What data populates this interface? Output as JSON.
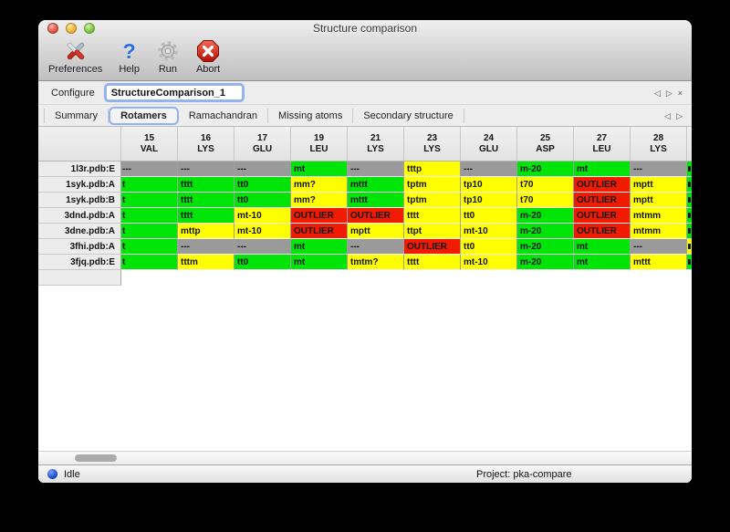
{
  "window": {
    "title": "Structure comparison"
  },
  "toolbar": {
    "buttons": [
      {
        "label": "Preferences",
        "icon": "tools-icon"
      },
      {
        "label": "Help",
        "icon": "help-icon",
        "glyph": "?"
      },
      {
        "label": "Run",
        "icon": "gear-icon"
      },
      {
        "label": "Abort",
        "icon": "abort-icon"
      }
    ]
  },
  "configure": {
    "label": "Configure",
    "field_value": "StructureComparison_1",
    "nav_back": "◁",
    "nav_forward": "▷",
    "nav_close": "×"
  },
  "tabs": {
    "items": [
      "Summary",
      "Rotamers",
      "Ramachandran",
      "Missing atoms",
      "Secondary structure"
    ],
    "selected": "Rotamers",
    "nav_back": "◁",
    "nav_forward": "▷"
  },
  "table": {
    "columns": [
      {
        "num": "15",
        "res": "VAL"
      },
      {
        "num": "16",
        "res": "LYS"
      },
      {
        "num": "17",
        "res": "GLU"
      },
      {
        "num": "19",
        "res": "LEU"
      },
      {
        "num": "21",
        "res": "LYS"
      },
      {
        "num": "23",
        "res": "LYS"
      },
      {
        "num": "24",
        "res": "GLU"
      },
      {
        "num": "25",
        "res": "ASP"
      },
      {
        "num": "27",
        "res": "LEU"
      },
      {
        "num": "28",
        "res": "LYS"
      }
    ],
    "rows": [
      {
        "label": "1l3r.pdb:E",
        "edge": "green",
        "cells": [
          {
            "t": "---",
            "c": "gray"
          },
          {
            "t": "---",
            "c": "gray"
          },
          {
            "t": "---",
            "c": "gray"
          },
          {
            "t": "mt",
            "c": "green"
          },
          {
            "t": "---",
            "c": "gray"
          },
          {
            "t": "tttp",
            "c": "yellow"
          },
          {
            "t": "---",
            "c": "gray"
          },
          {
            "t": "m-20",
            "c": "green"
          },
          {
            "t": "mt",
            "c": "green"
          },
          {
            "t": "---",
            "c": "gray"
          }
        ]
      },
      {
        "label": "1syk.pdb:A",
        "edge": "green",
        "cells": [
          {
            "t": "t",
            "c": "green"
          },
          {
            "t": "tttt",
            "c": "green"
          },
          {
            "t": "tt0",
            "c": "green"
          },
          {
            "t": "mm?",
            "c": "yellow"
          },
          {
            "t": "mttt",
            "c": "green"
          },
          {
            "t": "tptm",
            "c": "yellow"
          },
          {
            "t": "tp10",
            "c": "yellow"
          },
          {
            "t": "t70",
            "c": "yellow"
          },
          {
            "t": "OUTLIER",
            "c": "red"
          },
          {
            "t": "mptt",
            "c": "yellow"
          }
        ]
      },
      {
        "label": "1syk.pdb:B",
        "edge": "green",
        "cells": [
          {
            "t": "t",
            "c": "green"
          },
          {
            "t": "tttt",
            "c": "green"
          },
          {
            "t": "tt0",
            "c": "green"
          },
          {
            "t": "mm?",
            "c": "yellow"
          },
          {
            "t": "mttt",
            "c": "green"
          },
          {
            "t": "tptm",
            "c": "yellow"
          },
          {
            "t": "tp10",
            "c": "yellow"
          },
          {
            "t": "t70",
            "c": "yellow"
          },
          {
            "t": "OUTLIER",
            "c": "red"
          },
          {
            "t": "mptt",
            "c": "yellow"
          }
        ]
      },
      {
        "label": "3dnd.pdb:A",
        "edge": "green",
        "cells": [
          {
            "t": "t",
            "c": "green"
          },
          {
            "t": "tttt",
            "c": "green"
          },
          {
            "t": "mt-10",
            "c": "yellow"
          },
          {
            "t": "OUTLIER",
            "c": "red"
          },
          {
            "t": "OUTLIER",
            "c": "red"
          },
          {
            "t": "tttt",
            "c": "yellow"
          },
          {
            "t": "tt0",
            "c": "yellow"
          },
          {
            "t": "m-20",
            "c": "green"
          },
          {
            "t": "OUTLIER",
            "c": "red"
          },
          {
            "t": "mtmm",
            "c": "yellow"
          }
        ]
      },
      {
        "label": "3dne.pdb:A",
        "edge": "green",
        "cells": [
          {
            "t": "t",
            "c": "green"
          },
          {
            "t": "mttp",
            "c": "yellow"
          },
          {
            "t": "mt-10",
            "c": "yellow"
          },
          {
            "t": "OUTLIER",
            "c": "red"
          },
          {
            "t": "mptt",
            "c": "yellow"
          },
          {
            "t": "ttpt",
            "c": "yellow"
          },
          {
            "t": "mt-10",
            "c": "yellow"
          },
          {
            "t": "m-20",
            "c": "green"
          },
          {
            "t": "OUTLIER",
            "c": "red"
          },
          {
            "t": "mtmm",
            "c": "yellow"
          }
        ]
      },
      {
        "label": "3fhi.pdb:A",
        "edge": "yellow",
        "cells": [
          {
            "t": "t",
            "c": "green"
          },
          {
            "t": "---",
            "c": "gray"
          },
          {
            "t": "---",
            "c": "gray"
          },
          {
            "t": "mt",
            "c": "green"
          },
          {
            "t": "---",
            "c": "gray"
          },
          {
            "t": "OUTLIER",
            "c": "red"
          },
          {
            "t": "tt0",
            "c": "yellow"
          },
          {
            "t": "m-20",
            "c": "green"
          },
          {
            "t": "mt",
            "c": "green"
          },
          {
            "t": "---",
            "c": "gray"
          }
        ]
      },
      {
        "label": "3fjq.pdb:E",
        "edge": "green",
        "cells": [
          {
            "t": "t",
            "c": "green"
          },
          {
            "t": "tttm",
            "c": "yellow"
          },
          {
            "t": "tt0",
            "c": "green"
          },
          {
            "t": "mt",
            "c": "green"
          },
          {
            "t": "tmtm?",
            "c": "yellow"
          },
          {
            "t": "tttt",
            "c": "yellow"
          },
          {
            "t": "mt-10",
            "c": "yellow"
          },
          {
            "t": "m-20",
            "c": "green"
          },
          {
            "t": "mt",
            "c": "green"
          },
          {
            "t": "mttt",
            "c": "yellow"
          }
        ]
      }
    ]
  },
  "statusbar": {
    "status": "Idle",
    "project": "Project: pka-compare"
  },
  "colors": {
    "green": "#00e407",
    "yellow": "#ffff00",
    "red": "#f01b00",
    "gray": "#9a9a9a",
    "focus_ring": "#8fb3f4"
  }
}
